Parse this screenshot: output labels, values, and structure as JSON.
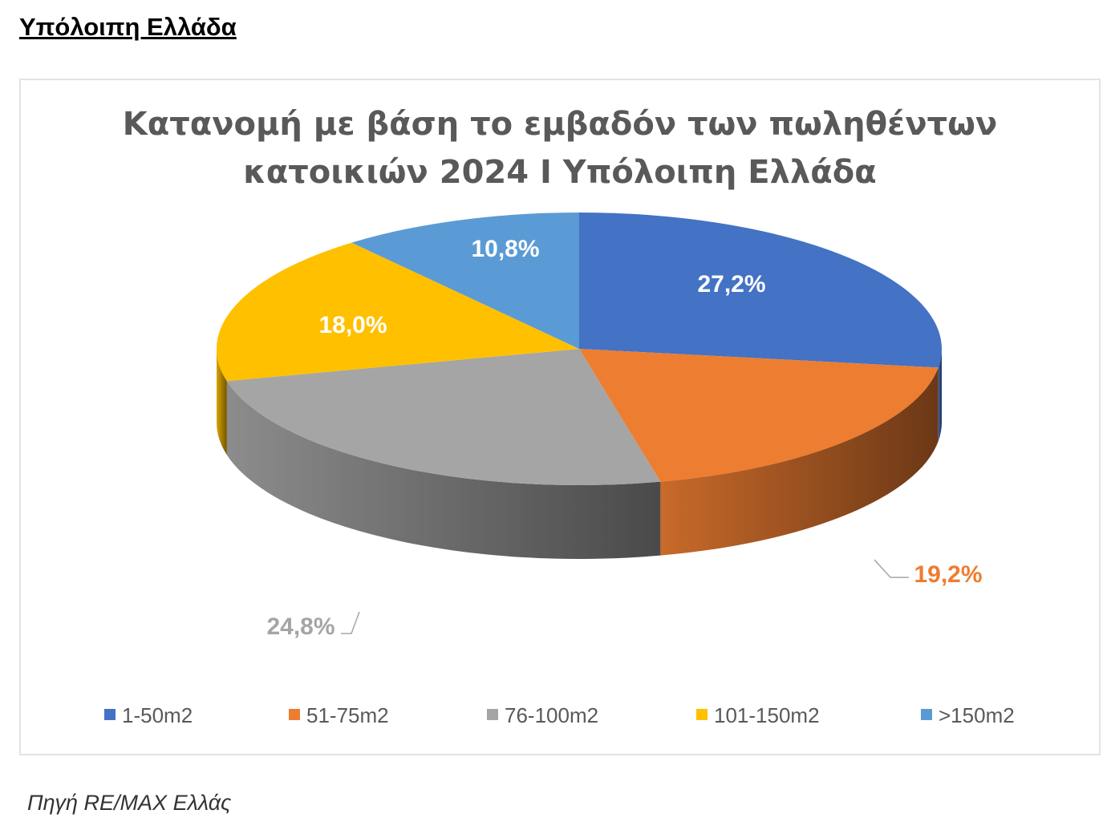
{
  "heading": "Υπόλοιπη Ελλάδα",
  "source": "Πηγή RE/MAX Ελλάς",
  "chart_data": {
    "type": "pie",
    "title": "Κατανομή με βάση το εμβαδόν των πωληθέντων κατοικιών 2024 Ι Υπόλοιπη Ελλάδα",
    "title_lines": [
      "Κατανομή με βάση το εμβαδόν των πωληθέντων",
      "κατοικιών 2024 Ι Υπόλοιπη Ελλάδα"
    ],
    "categories": [
      "1-50m2",
      "51-75m2",
      "76-100m2",
      "101-150m2",
      ">150m2"
    ],
    "values": [
      27.2,
      19.2,
      24.8,
      18.0,
      10.8
    ],
    "data_labels": [
      "27,2%",
      "19,2%",
      "24,8%",
      "18,0%",
      "10,8%"
    ],
    "colors": [
      "#4472C4",
      "#ED7D31",
      "#A5A5A5",
      "#FFC000",
      "#5B9BD5"
    ],
    "legend_position": "bottom"
  }
}
